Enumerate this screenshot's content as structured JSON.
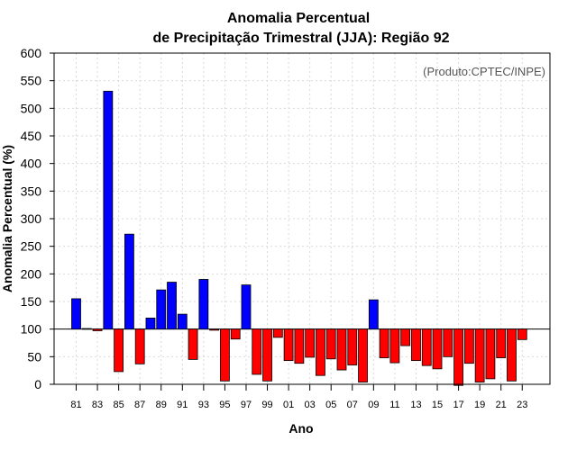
{
  "chart_data": {
    "type": "bar",
    "title_line1": "Anomalia Percentual",
    "title_line2": "de Precipitação Trimestral (JJA): Região 92",
    "xlabel": "Ano",
    "ylabel": "Anomalia Percentual (%)",
    "credit": "(Produto:CPTEC/INPE)",
    "ylim": [
      0,
      600
    ],
    "yticks": [
      0,
      50,
      100,
      150,
      200,
      250,
      300,
      350,
      400,
      450,
      500,
      550,
      600
    ],
    "baseline": 100,
    "grid": true,
    "positive_color": "#0000ff",
    "negative_color": "#ff0000",
    "categories": [
      "81",
      "82",
      "83",
      "84",
      "85",
      "86",
      "87",
      "88",
      "89",
      "90",
      "91",
      "92",
      "93",
      "94",
      "95",
      "96",
      "97",
      "98",
      "99",
      "00",
      "01",
      "02",
      "03",
      "04",
      "05",
      "06",
      "07",
      "08",
      "09",
      "10",
      "11",
      "12",
      "13",
      "14",
      "15",
      "16",
      "17",
      "18",
      "19",
      "20",
      "21",
      "22",
      "23"
    ],
    "tick_labels": [
      "81",
      "83",
      "85",
      "87",
      "89",
      "91",
      "93",
      "95",
      "97",
      "99",
      "01",
      "03",
      "05",
      "07",
      "09",
      "11",
      "13",
      "15",
      "17",
      "19",
      "21",
      "23"
    ],
    "values": [
      155,
      101,
      97,
      531,
      23,
      272,
      37,
      120,
      171,
      185,
      127,
      45,
      190,
      98,
      6,
      82,
      180,
      18,
      6,
      85,
      43,
      38,
      49,
      16,
      46,
      26,
      35,
      4,
      153,
      48,
      39,
      70,
      43,
      34,
      28,
      50,
      -2,
      38,
      4,
      10,
      48,
      6,
      81
    ]
  }
}
